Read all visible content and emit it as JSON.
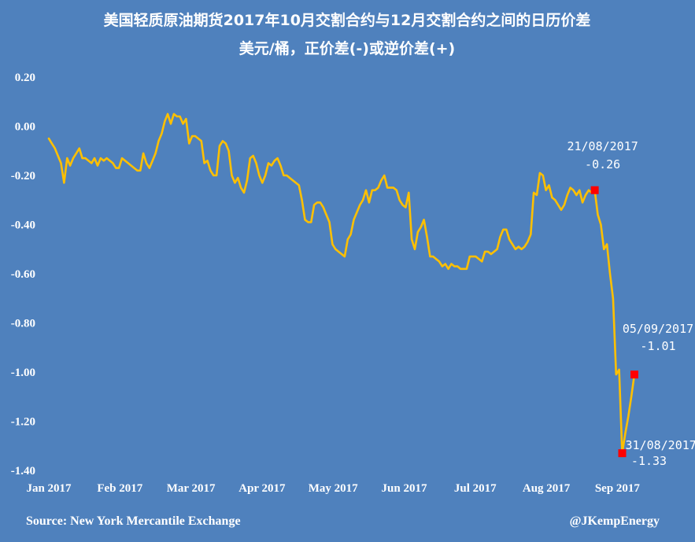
{
  "chart_data": {
    "type": "line",
    "title": "美国轻质原油期货2017年10月交割合约与12月交割合约之间的日历价差",
    "subtitle": "美元/桶，正价差(-)或逆价差(+)",
    "xlabel": "",
    "ylabel": "",
    "ylim": [
      -1.4,
      0.2
    ],
    "y_ticks": [
      "0.20",
      "0.00",
      "-0.20",
      "-0.40",
      "-0.60",
      "-0.80",
      "-1.00",
      "-1.20",
      "-1.40"
    ],
    "x_ticks": [
      "Jan 2017",
      "Feb 2017",
      "Mar 2017",
      "Apr 2017",
      "May 2017",
      "Jun 2017",
      "Jul 2017",
      "Aug 2017",
      "Sep 2017"
    ],
    "grid": false,
    "line_color": "#ffc000",
    "marker_color": "#ff0000",
    "series": [
      {
        "values": [
          -0.05,
          -0.07,
          -0.09,
          -0.12,
          -0.15,
          -0.23,
          -0.13,
          -0.16,
          -0.13,
          -0.11,
          -0.09,
          -0.13,
          -0.13,
          -0.14,
          -0.15,
          -0.13,
          -0.16,
          -0.13,
          -0.14,
          -0.13,
          -0.14,
          -0.15,
          -0.17,
          -0.17,
          -0.13,
          -0.14,
          -0.15,
          -0.16,
          -0.17,
          -0.18,
          -0.18,
          -0.11,
          -0.15,
          -0.17,
          -0.14,
          -0.11,
          -0.06,
          -0.03,
          0.02,
          0.05,
          0.01,
          0.05,
          0.04,
          0.04,
          0.01,
          0.03,
          -0.07,
          -0.04,
          -0.04,
          -0.05,
          -0.06,
          -0.15,
          -0.14,
          -0.18,
          -0.2,
          -0.2,
          -0.08,
          -0.06,
          -0.07,
          -0.1,
          -0.2,
          -0.23,
          -0.21,
          -0.25,
          -0.27,
          -0.22,
          -0.13,
          -0.12,
          -0.15,
          -0.2,
          -0.23,
          -0.2,
          -0.15,
          -0.16,
          -0.14,
          -0.13,
          -0.16,
          -0.2,
          -0.2,
          -0.21,
          -0.22,
          -0.23,
          -0.24,
          -0.3,
          -0.38,
          -0.39,
          -0.39,
          -0.32,
          -0.31,
          -0.31,
          -0.33,
          -0.36,
          -0.39,
          -0.48,
          -0.5,
          -0.51,
          -0.52,
          -0.53,
          -0.46,
          -0.44,
          -0.38,
          -0.35,
          -0.32,
          -0.3,
          -0.26,
          -0.31,
          -0.26,
          -0.26,
          -0.25,
          -0.22,
          -0.2,
          -0.25,
          -0.25,
          -0.25,
          -0.26,
          -0.3,
          -0.32,
          -0.33,
          -0.27,
          -0.46,
          -0.5,
          -0.43,
          -0.41,
          -0.38,
          -0.45,
          -0.53,
          -0.53,
          -0.54,
          -0.55,
          -0.57,
          -0.56,
          -0.58,
          -0.56,
          -0.57,
          -0.57,
          -0.58,
          -0.58,
          -0.58,
          -0.53,
          -0.53,
          -0.53,
          -0.54,
          -0.55,
          -0.51,
          -0.51,
          -0.52,
          -0.51,
          -0.5,
          -0.45,
          -0.42,
          -0.42,
          -0.46,
          -0.48,
          -0.5,
          -0.49,
          -0.5,
          -0.49,
          -0.47,
          -0.44,
          -0.27,
          -0.28,
          -0.19,
          -0.2,
          -0.26,
          -0.24,
          -0.29,
          -0.3,
          -0.32,
          -0.34,
          -0.32,
          -0.28,
          -0.25,
          -0.26,
          -0.28,
          -0.26,
          -0.31,
          -0.28,
          -0.26,
          -0.27,
          -0.26,
          -0.36,
          -0.4,
          -0.5,
          -0.48,
          -0.6,
          -0.7,
          -1.01,
          -0.99,
          -1.33,
          -1.25,
          -1.18,
          -1.1,
          -1.01
        ]
      }
    ],
    "annotations": [
      {
        "date": "21/08/2017",
        "value": "-0.26",
        "y": -0.26
      },
      {
        "date": "31/08/2017",
        "value": "-1.33",
        "y": -1.33
      },
      {
        "date": "05/09/2017",
        "value": "-1.01",
        "y": -1.01
      }
    ]
  },
  "footer": {
    "source": "Source: New York Mercantile Exchange",
    "credit": "@JKempEnergy"
  }
}
